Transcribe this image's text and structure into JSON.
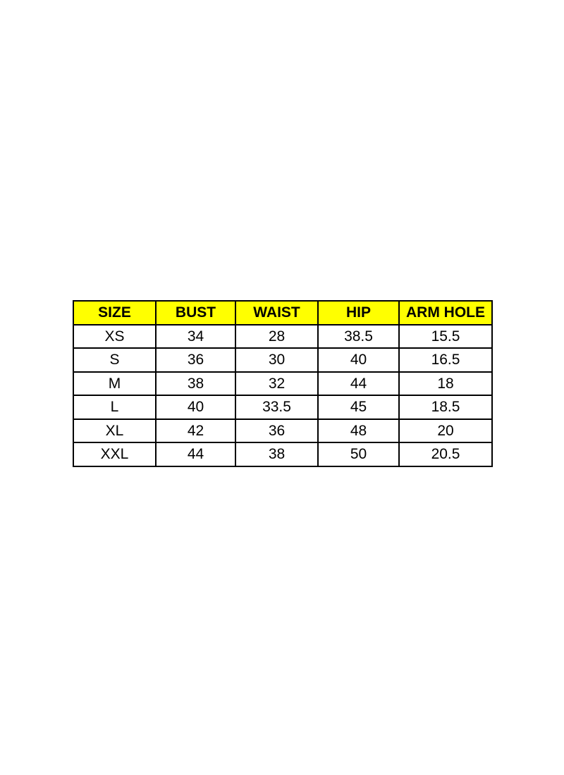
{
  "page": {
    "background_color": "#ffffff"
  },
  "chart_data": {
    "type": "table",
    "title": "",
    "columns": [
      "SIZE",
      "BUST",
      "WAIST",
      "HIP",
      "ARM HOLE"
    ],
    "rows": [
      [
        "XS",
        "34",
        "28",
        "38.5",
        "15.5"
      ],
      [
        "S",
        "36",
        "30",
        "40",
        "16.5"
      ],
      [
        "M",
        "38",
        "32",
        "44",
        "18"
      ],
      [
        "L",
        "40",
        "33.5",
        "45",
        "18.5"
      ],
      [
        "XL",
        "42",
        "36",
        "48",
        "20"
      ],
      [
        "XXL",
        "44",
        "38",
        "50",
        "20.5"
      ]
    ],
    "header_background_color": "#ffff00",
    "header_text_color": "#000000",
    "body_text_color": "#000000",
    "border_color": "#000000",
    "grid": "on",
    "legend": "none"
  }
}
